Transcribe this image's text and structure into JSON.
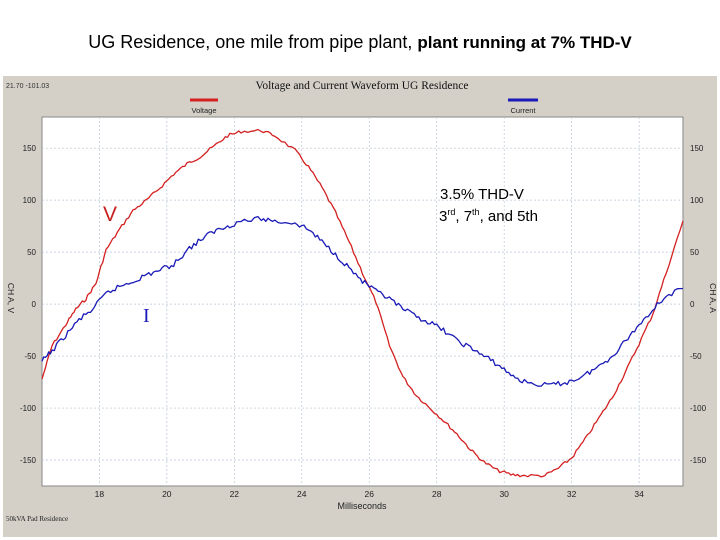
{
  "slide": {
    "title_part1": "UG Residence, one mile from pipe plant, ",
    "title_part2": "plant running at 7% THD-V"
  },
  "header": {
    "timestamp": "21.70 -101.03",
    "chart_title": "Voltage and Current Waveform UG Residence",
    "footer_label": "50kVA Pad Residence"
  },
  "annotations": {
    "v_marker": "V",
    "i_marker": "I",
    "thd_line1": "3.5% THD-V",
    "thd_line2_pre1": "3",
    "thd_line2_sup1": "rd",
    "thd_line2_pre2": ", 7",
    "thd_line2_sup2": "th",
    "thd_line2_post": ", and 5th"
  },
  "colors": {
    "voltage": "#d42020",
    "current": "#1a1ab8",
    "plot_bg": "#ffffff",
    "panel_bg": "#d4d0c8",
    "grid": "#b8c4d4"
  },
  "chart_data": {
    "type": "line",
    "title": "Voltage and Current Waveform UG Residence",
    "xlabel": "Milliseconds",
    "ylabel_left": "CH A, V",
    "ylabel_right": "CH A, A",
    "xlim": [
      16.3,
      35.3
    ],
    "ylim": [
      -175,
      180
    ],
    "x_ticks": [
      18,
      20,
      22,
      24,
      26,
      28,
      30,
      32,
      34
    ],
    "y_ticks": [
      150,
      100,
      50,
      0,
      -50,
      -100,
      -150
    ],
    "y_tick_labels": [
      "150",
      "100",
      "50",
      "0",
      "-50",
      "-100",
      "-150"
    ],
    "grid": true,
    "legend_position": "top",
    "series": [
      {
        "name": "Voltage",
        "color": "#d42020",
        "x": [
          16.3,
          16.6,
          17.0,
          17.3,
          17.6,
          17.9,
          18.2,
          18.6,
          19.0,
          19.4,
          19.8,
          20.2,
          20.6,
          21.0,
          21.4,
          21.8,
          22.2,
          22.8,
          23.2,
          23.8,
          24.2,
          24.6,
          25.0,
          25.4,
          25.8,
          26.2,
          26.6,
          27.0,
          27.4,
          27.8,
          28.2,
          28.6,
          29.0,
          29.4,
          29.8,
          30.2,
          30.6,
          31.2,
          31.6,
          32.0,
          32.4,
          32.8,
          33.2,
          33.6,
          34.0,
          34.4,
          34.8,
          35.3
        ],
        "values": [
          -72,
          -40,
          -20,
          -5,
          5,
          20,
          52,
          72,
          90,
          100,
          112,
          125,
          135,
          142,
          152,
          162,
          166,
          167,
          162,
          148,
          132,
          112,
          88,
          60,
          30,
          2,
          -40,
          -70,
          -88,
          -100,
          -112,
          -125,
          -140,
          -152,
          -160,
          -164,
          -165,
          -165,
          -158,
          -148,
          -130,
          -110,
          -90,
          -65,
          -38,
          -10,
          30,
          80
        ]
      },
      {
        "name": "Current",
        "color": "#1a1ab8",
        "x": [
          16.3,
          16.6,
          17.0,
          17.4,
          17.8,
          18.2,
          18.6,
          19.0,
          19.4,
          19.8,
          20.2,
          20.6,
          21.0,
          21.4,
          21.8,
          22.2,
          22.8,
          23.2,
          23.8,
          24.2,
          24.6,
          25.0,
          25.4,
          25.8,
          26.2,
          26.6,
          27.0,
          27.4,
          27.8,
          28.2,
          28.6,
          29.0,
          29.4,
          29.8,
          30.2,
          30.6,
          31.2,
          31.6,
          32.0,
          32.4,
          32.8,
          33.2,
          33.6,
          34.0,
          34.4,
          34.8,
          35.3
        ],
        "values": [
          -55,
          -45,
          -30,
          -15,
          -5,
          10,
          17,
          22,
          28,
          33,
          38,
          52,
          62,
          70,
          75,
          80,
          82,
          80,
          78,
          72,
          60,
          48,
          35,
          22,
          12,
          5,
          -5,
          -12,
          -18,
          -25,
          -35,
          -42,
          -50,
          -58,
          -68,
          -75,
          -78,
          -77,
          -74,
          -68,
          -60,
          -50,
          -35,
          -20,
          -5,
          8,
          15
        ]
      }
    ]
  }
}
